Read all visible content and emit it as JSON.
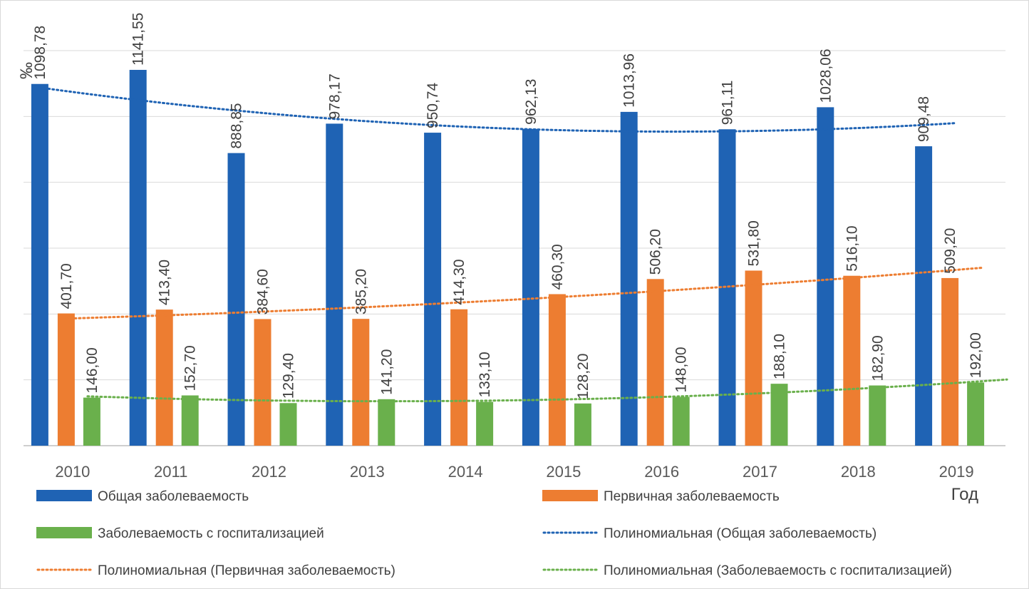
{
  "chart_data": {
    "type": "bar",
    "categories": [
      "2010",
      "2011",
      "2012",
      "2013",
      "2014",
      "2015",
      "2016",
      "2017",
      "2018",
      "2019"
    ],
    "ylabel": "‰",
    "xlabel": "Год",
    "ylim": [
      0,
      1200
    ],
    "ytick_step": 200,
    "grid": true,
    "legend_position": "bottom",
    "series": [
      {
        "name": "Общая заболеваемость",
        "color": "#1f63b4",
        "values": [
          1098.78,
          1141.55,
          888.85,
          978.17,
          950.74,
          962.13,
          1013.96,
          961.11,
          1028.06,
          909.48
        ],
        "labels": [
          "1098,78",
          "1141,55",
          "888,85",
          "978,17",
          "950,74",
          "962,13",
          "1013,96",
          "961,11",
          "1028,06",
          "909,48"
        ]
      },
      {
        "name": "Первичная заболеваемость",
        "color": "#ed7d31",
        "values": [
          401.7,
          413.4,
          384.6,
          385.2,
          414.3,
          460.3,
          506.2,
          531.8,
          516.1,
          509.2
        ],
        "labels": [
          "401,70",
          "413,40",
          "384,60",
          "385,20",
          "414,30",
          "460,30",
          "506,20",
          "531,80",
          "516,10",
          "509,20"
        ]
      },
      {
        "name": "Заболеваемость с госпитализацией",
        "color": "#6ab04c",
        "values": [
          146.0,
          152.7,
          129.4,
          141.2,
          133.1,
          128.2,
          148.0,
          188.1,
          182.9,
          192.0
        ],
        "labels": [
          "146,00",
          "152,70",
          "129,40",
          "141,20",
          "133,10",
          "128,20",
          "148,00",
          "188,10",
          "182,90",
          "192,00"
        ]
      }
    ],
    "trendlines": [
      {
        "name": "Полиномиальная (Общая заболеваемость)",
        "color": "#1f63b4",
        "series_index": 0,
        "type": "polynomial"
      },
      {
        "name": "Полиномиальная (Первичная заболеваемость)",
        "color": "#ed7d31",
        "series_index": 1,
        "type": "polynomial"
      },
      {
        "name": "Полиномиальная (Заболеваемость с госпитализацией)",
        "color": "#6ab04c",
        "series_index": 2,
        "type": "polynomial"
      }
    ]
  }
}
